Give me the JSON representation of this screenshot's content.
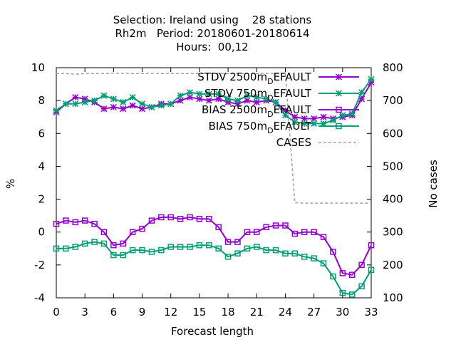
{
  "chart_data": {
    "type": "line",
    "title_lines": [
      "Selection: Ireland using    28 stations",
      "Rh2m   Period: 20180601-20180614",
      "Hours:  00,12"
    ],
    "xlabel": "Forecast length",
    "ylabel": "%",
    "y2label": "No cases",
    "xlim": [
      0,
      33
    ],
    "ylim": [
      -4,
      10
    ],
    "y2lim": [
      100,
      800
    ],
    "x_ticks": [
      0,
      3,
      6,
      9,
      12,
      15,
      18,
      21,
      24,
      27,
      30,
      33
    ],
    "y_ticks": [
      -4,
      -2,
      0,
      2,
      4,
      6,
      8,
      10
    ],
    "y2_ticks": [
      100,
      200,
      300,
      400,
      500,
      600,
      700,
      800
    ],
    "x": [
      0,
      1,
      2,
      3,
      4,
      5,
      6,
      7,
      8,
      9,
      10,
      11,
      12,
      13,
      14,
      15,
      16,
      17,
      18,
      19,
      20,
      21,
      22,
      23,
      24,
      25,
      26,
      27,
      28,
      29,
      30,
      31,
      32,
      33
    ],
    "legend_position": "top-right",
    "series": [
      {
        "name": "STDV 2500m_DEFAULT",
        "legend_main": "STDV 2500m",
        "legend_sub": "D",
        "legend_tail": "EFAULT",
        "color": "#9400d3",
        "marker": "star",
        "axis": "y",
        "values": [
          7.3,
          7.8,
          8.2,
          8.1,
          7.9,
          7.5,
          7.6,
          7.5,
          7.7,
          7.5,
          7.6,
          7.8,
          7.8,
          8.0,
          8.2,
          8.1,
          8.0,
          8.1,
          7.9,
          7.8,
          8.0,
          7.9,
          8.0,
          7.9,
          7.4,
          7.0,
          6.9,
          6.9,
          7.0,
          6.9,
          7.0,
          7.1,
          8.1,
          9.1
        ]
      },
      {
        "name": "STDV 750m_DEFAULT",
        "legend_main": "STDV 750m",
        "legend_sub": "D",
        "legend_tail": "EFAULT",
        "color": "#009e73",
        "marker": "star",
        "axis": "y",
        "values": [
          7.4,
          7.8,
          7.8,
          7.9,
          8.0,
          8.3,
          8.1,
          7.9,
          8.2,
          7.8,
          7.6,
          7.7,
          7.8,
          8.3,
          8.5,
          8.4,
          8.4,
          8.4,
          8.1,
          8.0,
          8.3,
          8.2,
          8.1,
          7.9,
          7.1,
          6.7,
          6.6,
          6.6,
          6.6,
          6.8,
          7.1,
          7.2,
          8.5,
          9.3
        ]
      },
      {
        "name": "BIAS 2500m_DEFAULT",
        "legend_main": "BIAS 2500m",
        "legend_sub": "D",
        "legend_tail": "EFAULT",
        "color": "#9400d3",
        "marker": "square",
        "axis": "y",
        "values": [
          0.5,
          0.7,
          0.6,
          0.7,
          0.5,
          0.0,
          -0.8,
          -0.7,
          0.0,
          0.2,
          0.7,
          0.9,
          0.9,
          0.8,
          0.9,
          0.8,
          0.8,
          0.3,
          -0.6,
          -0.6,
          0.0,
          0.0,
          0.3,
          0.4,
          0.4,
          -0.1,
          0.0,
          0.0,
          -0.3,
          -1.2,
          -2.5,
          -2.6,
          -2.0,
          -0.8
        ]
      },
      {
        "name": "BIAS 750m_DEFAULT",
        "legend_main": "BIAS 750m",
        "legend_sub": "D",
        "legend_tail": "EFAULT",
        "color": "#009e73",
        "marker": "square",
        "axis": "y",
        "values": [
          -1.0,
          -1.0,
          -0.9,
          -0.7,
          -0.6,
          -0.7,
          -1.4,
          -1.4,
          -1.1,
          -1.1,
          -1.2,
          -1.1,
          -0.9,
          -0.9,
          -0.9,
          -0.8,
          -0.8,
          -1.0,
          -1.5,
          -1.3,
          -1.0,
          -0.9,
          -1.1,
          -1.1,
          -1.3,
          -1.3,
          -1.5,
          -1.6,
          -1.9,
          -2.7,
          -3.7,
          -3.8,
          -3.3,
          -2.3
        ]
      },
      {
        "name": "CASES",
        "legend_main": "CASES",
        "legend_sub": "",
        "legend_tail": "",
        "color": "#a0a0a0",
        "marker": "none",
        "dashed": true,
        "axis": "y2",
        "values": [
          782,
          782,
          780,
          782,
          782,
          782,
          783,
          783,
          782,
          782,
          783,
          782,
          782,
          782,
          782,
          782,
          782,
          782,
          782,
          782,
          782,
          782,
          782,
          782,
          782,
          389,
          388,
          388,
          388,
          388,
          388,
          388,
          388,
          388
        ]
      }
    ]
  }
}
